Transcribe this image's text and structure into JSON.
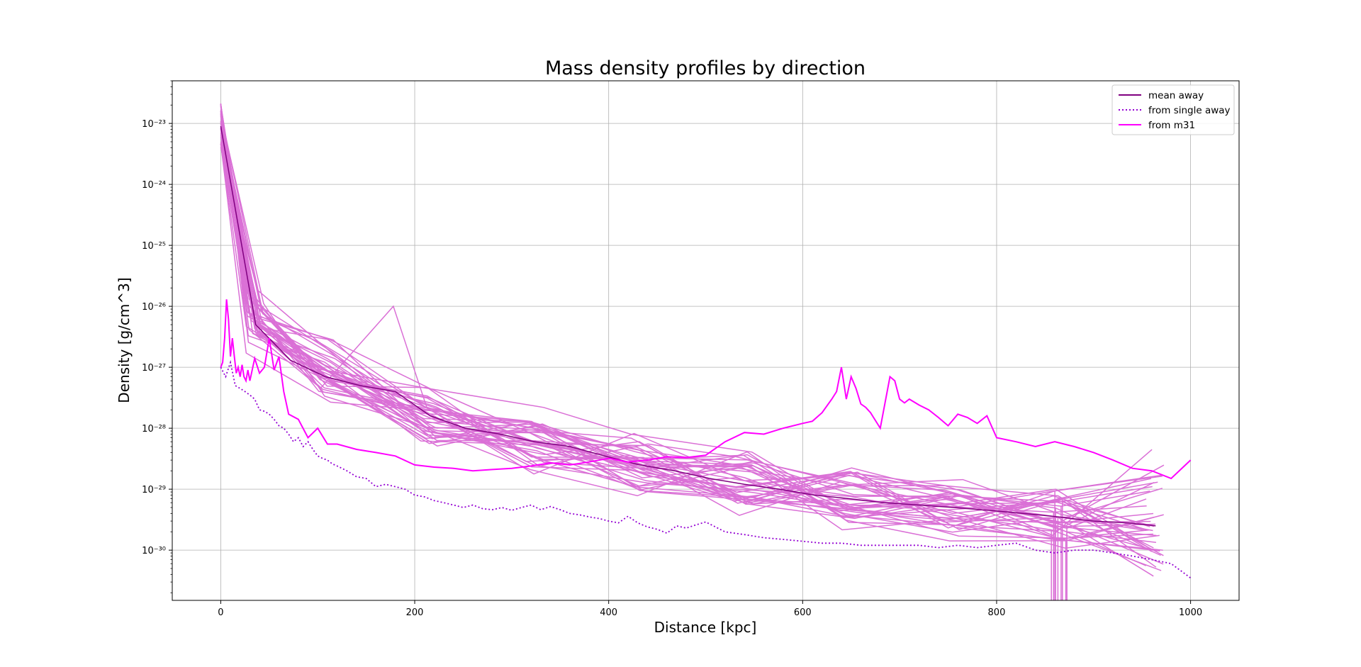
{
  "chart_data": {
    "type": "line",
    "title": "Mass density profiles by direction",
    "xlabel": "Distance [kpc]",
    "ylabel": "Density [g/cm^3]",
    "xlim": [
      -50,
      1050
    ],
    "ylim": [
      1.5e-31,
      5e-23
    ],
    "yscale": "log",
    "grid": true,
    "legend_position": "upper right",
    "x_ticks": [
      0,
      200,
      400,
      600,
      800,
      1000
    ],
    "x_tick_labels": [
      "0",
      "200",
      "400",
      "600",
      "800",
      "1000"
    ],
    "y_ticks": [
      1e-30,
      1e-29,
      1e-28,
      1e-27,
      1e-26,
      1e-25,
      1e-24,
      1e-23
    ],
    "y_tick_labels": [
      "10⁻³⁰",
      "10⁻²⁹",
      "10⁻²⁸",
      "10⁻²⁷",
      "10⁻²⁶",
      "10⁻²⁵",
      "10⁻²⁴",
      "10⁻²³"
    ],
    "colors": {
      "mean_away": "#800080",
      "single_away": "#9400D3",
      "m31": "#FF00FF",
      "directions": "#DA70D6",
      "grid": "#b0b0b0"
    },
    "legend": [
      {
        "label": "mean away",
        "style": "solid",
        "color": "#800080"
      },
      {
        "label": "from single away",
        "style": "dotted",
        "color": "#9400D3"
      },
      {
        "label": "from m31",
        "style": "solid",
        "color": "#FF00FF"
      }
    ],
    "series": [
      {
        "name": "mean away",
        "style": "solid",
        "x": [
          0,
          36,
          72,
          108,
          144,
          180,
          216,
          252,
          288,
          324,
          360,
          396,
          432,
          468,
          504,
          540,
          576,
          612,
          648,
          684,
          720,
          756,
          792,
          828,
          864,
          900,
          936,
          964
        ],
        "y": [
          9e-24,
          5e-27,
          1.3e-27,
          7e-28,
          5e-28,
          4e-28,
          1.6e-28,
          1e-28,
          8e-29,
          6e-29,
          5e-29,
          3.5e-29,
          2.5e-29,
          2e-29,
          1.5e-29,
          1.2e-29,
          1e-29,
          8e-30,
          7e-30,
          6e-30,
          5.5e-30,
          5e-30,
          4.5e-30,
          4e-30,
          3.5e-30,
          3e-30,
          2.8e-30,
          2.5e-30
        ]
      },
      {
        "name": "from single away",
        "style": "dotted",
        "x": [
          0,
          5,
          10,
          15,
          20,
          25,
          30,
          35,
          40,
          45,
          50,
          55,
          60,
          65,
          70,
          75,
          80,
          85,
          90,
          95,
          100,
          105,
          110,
          115,
          120,
          130,
          140,
          150,
          160,
          170,
          180,
          190,
          200,
          210,
          220,
          230,
          240,
          250,
          260,
          270,
          280,
          290,
          300,
          310,
          320,
          330,
          340,
          350,
          360,
          370,
          380,
          390,
          400,
          410,
          420,
          430,
          440,
          450,
          460,
          470,
          480,
          490,
          500,
          520,
          540,
          560,
          580,
          600,
          620,
          640,
          660,
          680,
          700,
          720,
          740,
          760,
          780,
          800,
          820,
          840,
          860,
          880,
          900,
          920,
          940,
          960,
          980,
          1000
        ],
        "y": [
          1e-27,
          7e-28,
          1.2e-27,
          5e-28,
          4.5e-28,
          4e-28,
          3.5e-28,
          3e-28,
          2e-28,
          1.9e-28,
          1.7e-28,
          1.4e-28,
          1.1e-28,
          1e-28,
          8e-29,
          6e-29,
          7e-29,
          5e-29,
          6e-29,
          4.5e-29,
          3.5e-29,
          3.2e-29,
          3e-29,
          2.6e-29,
          2.4e-29,
          2e-29,
          1.6e-29,
          1.5e-29,
          1.1e-29,
          1.2e-29,
          1.1e-29,
          1e-29,
          8e-30,
          7.5e-30,
          6.5e-30,
          6e-30,
          5.5e-30,
          5e-30,
          5.5e-30,
          4.8e-30,
          4.6e-30,
          5e-30,
          4.5e-30,
          5e-30,
          5.5e-30,
          4.6e-30,
          5.2e-30,
          4.6e-30,
          4e-30,
          3.8e-30,
          3.5e-30,
          3.3e-30,
          3e-30,
          2.8e-30,
          3.6e-30,
          2.8e-30,
          2.4e-30,
          2.2e-30,
          1.9e-30,
          2.5e-30,
          2.3e-30,
          2.6e-30,
          2.9e-30,
          2e-30,
          1.8e-30,
          1.6e-30,
          1.5e-30,
          1.4e-30,
          1.3e-30,
          1.3e-30,
          1.2e-30,
          1.2e-30,
          1.2e-30,
          1.2e-30,
          1.1e-30,
          1.2e-30,
          1.1e-30,
          1.2e-30,
          1.3e-30,
          1e-30,
          9e-31,
          1e-30,
          1e-30,
          9e-31,
          8e-31,
          7e-31,
          6e-31,
          3.5e-31
        ]
      },
      {
        "name": "from m31",
        "style": "solid",
        "x": [
          0,
          2,
          4,
          6,
          8,
          10,
          12,
          14,
          16,
          18,
          20,
          22,
          24,
          26,
          28,
          30,
          35,
          40,
          45,
          50,
          55,
          60,
          65,
          70,
          80,
          90,
          100,
          110,
          120,
          140,
          160,
          180,
          200,
          220,
          240,
          260,
          280,
          300,
          320,
          340,
          360,
          380,
          400,
          420,
          440,
          460,
          480,
          500,
          520,
          540,
          560,
          580,
          600,
          610,
          620,
          630,
          635,
          640,
          645,
          650,
          655,
          660,
          665,
          670,
          680,
          690,
          695,
          700,
          705,
          710,
          720,
          730,
          740,
          750,
          760,
          770,
          780,
          790,
          800,
          820,
          840,
          860,
          880,
          900,
          920,
          940,
          960,
          980,
          1000
        ],
        "y": [
          1e-27,
          1.2e-27,
          3e-27,
          1.3e-26,
          6e-27,
          1.5e-27,
          3e-27,
          1.5e-27,
          8e-28,
          1e-27,
          7e-28,
          1.1e-27,
          7e-28,
          6e-28,
          9e-28,
          6e-28,
          1.4e-27,
          8e-28,
          1e-27,
          3e-27,
          9e-28,
          1.5e-27,
          4e-28,
          1.7e-28,
          1.4e-28,
          7e-29,
          1e-28,
          5.5e-29,
          5.5e-29,
          4.5e-29,
          4e-29,
          3.5e-29,
          2.5e-29,
          2.3e-29,
          2.2e-29,
          2e-29,
          2.1e-29,
          2.2e-29,
          2.4e-29,
          2.7e-29,
          2.5e-29,
          2.8e-29,
          3.2e-29,
          2.8e-29,
          3e-29,
          3.4e-29,
          3.3e-29,
          3.6e-29,
          6e-29,
          8.5e-29,
          8e-29,
          1e-28,
          1.2e-28,
          1.3e-28,
          1.8e-28,
          3e-28,
          4e-28,
          1e-27,
          3e-28,
          7e-28,
          4.5e-28,
          2.5e-28,
          2.2e-28,
          1.8e-28,
          1e-28,
          7e-28,
          6e-28,
          3e-28,
          2.6e-28,
          3e-28,
          2.4e-28,
          2e-28,
          1.5e-28,
          1.1e-28,
          1.7e-28,
          1.5e-28,
          1.2e-28,
          1.6e-28,
          7e-29,
          6e-29,
          5e-29,
          6e-29,
          5e-29,
          4e-29,
          3e-29,
          2.2e-29,
          2e-29,
          1.5e-29,
          3e-29
        ]
      }
    ],
    "direction_profiles": {
      "name": "",
      "count": 40,
      "x_range": [
        0,
        964
      ],
      "y_start_range": [
        4e-24,
        2.2e-23
      ],
      "y_end_range": [
        4.5e-31,
        1.5e-29
      ],
      "x_mid": [
        36,
        108,
        216,
        324,
        432,
        540,
        648,
        756,
        864,
        964
      ],
      "y_mid_typical": [
        6e-27,
        9e-28,
        1.5e-28,
        6e-29,
        2.5e-29,
        1.3e-29,
        8e-30,
        5e-30,
        3.5e-30,
        2.5e-30
      ],
      "outlier_peak": {
        "x": 178,
        "y": 1e-26
      }
    }
  }
}
